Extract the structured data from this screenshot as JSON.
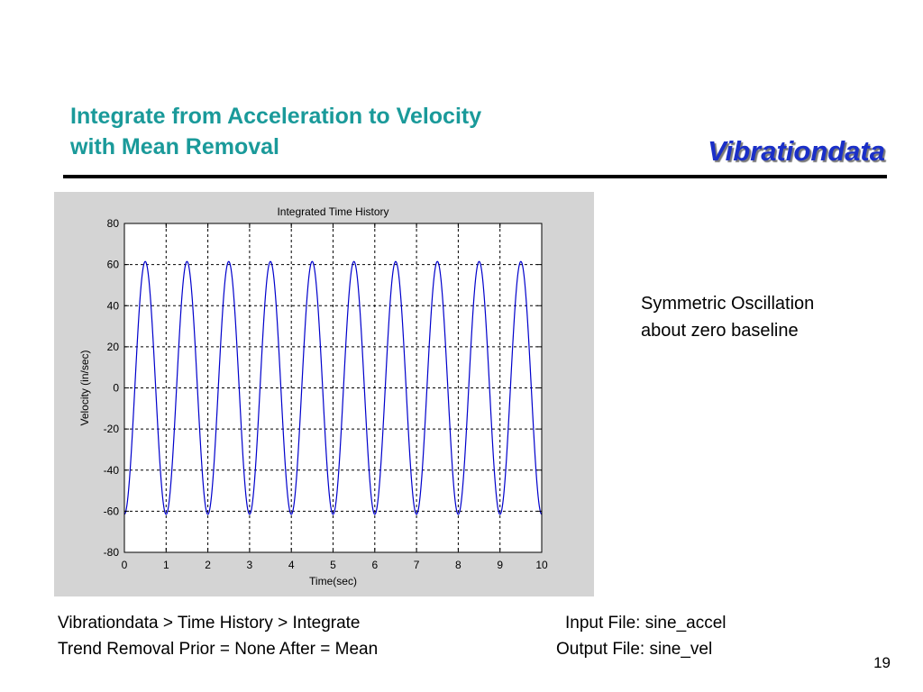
{
  "slide": {
    "title_line1": "Integrate from Acceleration to Velocity",
    "title_line2": "with Mean Removal",
    "brand": "Vibrationdata",
    "note_line1": "Symmetric Oscillation",
    "note_line2": "about zero baseline",
    "footer_path": "Vibrationdata > Time History > Integrate",
    "footer_trend": "Trend Removal   Prior = None      After  = Mean",
    "input_file": "Input File:  sine_accel",
    "output_file": "Output File: sine_vel",
    "page_number": "19"
  },
  "chart_data": {
    "type": "line",
    "title": "Integrated Time History",
    "xlabel": "Time(sec)",
    "ylabel": "Velocity (in/sec)",
    "xlim": [
      0,
      10
    ],
    "ylim": [
      -80,
      80
    ],
    "xticks": [
      0,
      1,
      2,
      3,
      4,
      5,
      6,
      7,
      8,
      9,
      10
    ],
    "yticks": [
      80,
      60,
      40,
      20,
      0,
      -20,
      -40,
      -60,
      -80
    ],
    "grid": true,
    "grid_style": "dashed",
    "series": [
      {
        "color": "#0000cc",
        "function": "-61.5 * cos(2*pi*t), t from 0 to 10 s",
        "amplitude": 61.5,
        "frequency_hz": 1,
        "x": [
          0,
          0.5,
          1,
          1.5,
          2,
          2.5,
          3,
          3.5,
          4,
          4.5,
          5,
          5.5,
          6,
          6.5,
          7,
          7.5,
          8,
          8.5,
          9,
          9.5,
          10
        ],
        "y": [
          -61.5,
          61.5,
          -61.5,
          61.5,
          -61.5,
          61.5,
          -61.5,
          61.5,
          -61.5,
          61.5,
          -61.5,
          61.5,
          -61.5,
          61.5,
          -61.5,
          61.5,
          -61.5,
          61.5,
          -61.5,
          61.5,
          -61.5
        ]
      }
    ]
  }
}
